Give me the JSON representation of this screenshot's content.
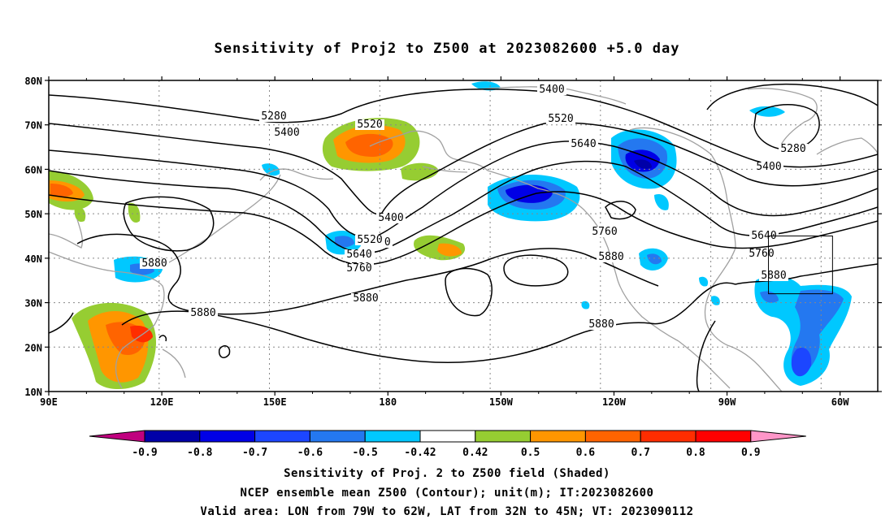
{
  "title": "Sensitivity of Proj2 to Z500 at 2023082600 +5.0 day",
  "lat_labels": [
    "80N",
    "70N",
    "60N",
    "50N",
    "40N",
    "30N",
    "20N",
    "10N"
  ],
  "lon_labels": [
    "90E",
    "120E",
    "150E",
    "180",
    "150W",
    "120W",
    "90W",
    "60W"
  ],
  "contour_labels": [
    "5280",
    "5400",
    "5520",
    "5640",
    "5760",
    "5880",
    "5400",
    "5520",
    "5640",
    "5760",
    "5880",
    "5400",
    "5520",
    "5640",
    "5760",
    "5880",
    "5880",
    "5280",
    "5400",
    "5640",
    "5760",
    "5880",
    "5760",
    "5880"
  ],
  "colorbar": {
    "labels": [
      "-0.9",
      "-0.8",
      "-0.7",
      "-0.6",
      "-0.5",
      "-0.42",
      "0.42",
      "0.5",
      "0.6",
      "0.7",
      "0.8",
      "0.9"
    ],
    "colors": [
      "#c0007f",
      "#0000a8",
      "#0000e6",
      "#1c46ff",
      "#2478f0",
      "#00c8ff",
      "#ffffff",
      "#96cd32",
      "#ff9600",
      "#ff6400",
      "#ff2d00",
      "#ff0000",
      "#ff96c8"
    ]
  },
  "valid_area": {
    "lon": [
      -79,
      -62
    ],
    "lat": [
      32,
      45
    ]
  },
  "footer": {
    "line1": "Sensitivity of Proj. 2 to Z500 field (Shaded)",
    "line2": "NCEP ensemble mean Z500 (Contour); unit(m); IT:2023082600",
    "line3": "Valid area: LON from 79W to 62W, LAT from 32N to 45N; VT: 2023090112"
  }
}
